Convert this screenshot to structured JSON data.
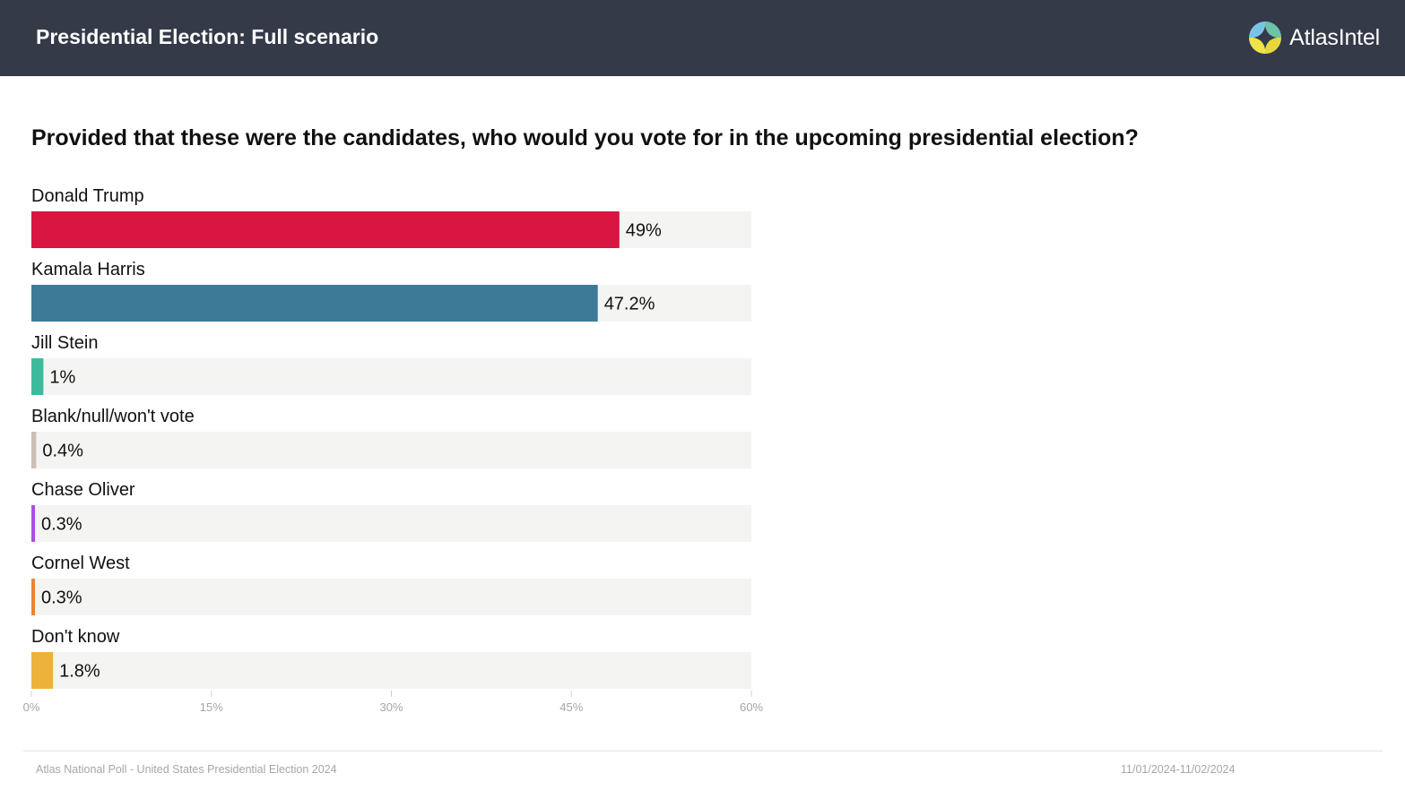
{
  "header": {
    "title": "Presidential Election: Full scenario",
    "brand": "AtlasIntel",
    "logo_icon": "atlasintel-compass-logo-icon"
  },
  "question": "Provided that these were the candidates, who would you vote for in the upcoming presidential election?",
  "chart_data": {
    "type": "bar",
    "orientation": "horizontal",
    "title": "Provided that these were the candidates, who would you vote for in the upcoming presidential election?",
    "categories": [
      "Donald Trump",
      "Kamala Harris",
      "Jill Stein",
      "Blank/null/won't vote",
      "Chase Oliver",
      "Cornel West",
      "Don't know"
    ],
    "values": [
      49,
      47.2,
      1,
      0.4,
      0.3,
      0.3,
      1.8
    ],
    "value_labels": [
      "49%",
      "47.2%",
      "1%",
      "0.4%",
      "0.3%",
      "0.3%",
      "1.8%"
    ],
    "colors": [
      "#d91541",
      "#3c7a98",
      "#3cbb9c",
      "#cbbfb6",
      "#b04de0",
      "#e8853a",
      "#ecb23b"
    ],
    "track_color": "#f4f4f2",
    "xlim": [
      0,
      60
    ],
    "xticks": [
      0,
      15,
      30,
      45,
      60
    ],
    "xtick_labels": [
      "0%",
      "15%",
      "30%",
      "45%",
      "60%"
    ],
    "grid": false,
    "legend": "none"
  },
  "footer": {
    "source": "Atlas National Poll - United States Presidential Election 2024",
    "dates": "11/01/2024-11/02/2024"
  }
}
